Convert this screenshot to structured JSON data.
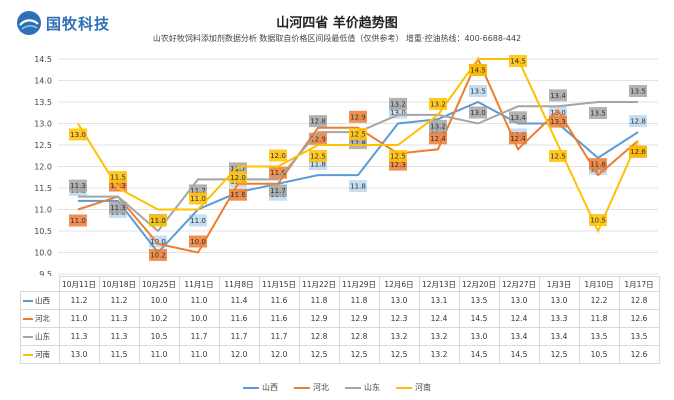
{
  "brand": {
    "name": "国牧科技"
  },
  "header": {
    "title": "山河四省 羊价趋势图",
    "subtitle": "山农好牧饲料添加剂数据分析  数据取自价格区间段最低值（仅供参考）   增重·控油热线：400-6688-442"
  },
  "colors": {
    "山西": "#5b9bd5",
    "河北": "#ed7d31",
    "山东": "#a5a5a5",
    "河南": "#ffc000"
  },
  "chart_data": {
    "type": "line",
    "title": "山河四省 羊价趋势图",
    "categories": [
      "10月11日",
      "10月18日",
      "10月25日",
      "11月1日",
      "11月8日",
      "11月15日",
      "11月22日",
      "11月29日",
      "12月6日",
      "12月13日",
      "12月20日",
      "12月27日",
      "1月3日",
      "1月10日",
      "1月17日"
    ],
    "ylim": [
      9.5,
      14.5
    ],
    "yticks": [
      "9.5",
      "10.0",
      "10.5",
      "11.0",
      "11.5",
      "12.0",
      "12.5",
      "13.0",
      "13.5",
      "14.0",
      "14.5"
    ],
    "grid": true,
    "legend": "bottom",
    "series": [
      {
        "name": "山西",
        "values": [
          11.2,
          11.2,
          10.0,
          11.0,
          11.4,
          11.6,
          11.8,
          11.8,
          13.0,
          13.1,
          13.5,
          13.0,
          13.0,
          12.2,
          12.8
        ]
      },
      {
        "name": "河北",
        "values": [
          11.0,
          11.3,
          10.2,
          10.0,
          11.6,
          11.6,
          12.9,
          12.9,
          12.3,
          12.4,
          14.5,
          12.4,
          13.3,
          11.8,
          12.6
        ]
      },
      {
        "name": "山东",
        "values": [
          11.3,
          11.3,
          10.5,
          11.7,
          11.7,
          11.7,
          12.8,
          12.8,
          13.2,
          13.2,
          13.0,
          13.4,
          13.4,
          13.5,
          13.5
        ]
      },
      {
        "name": "河南",
        "values": [
          13.0,
          11.5,
          11.0,
          11.0,
          12.0,
          12.0,
          12.5,
          12.5,
          12.5,
          13.2,
          14.5,
          14.5,
          12.5,
          10.5,
          12.6
        ]
      }
    ]
  }
}
